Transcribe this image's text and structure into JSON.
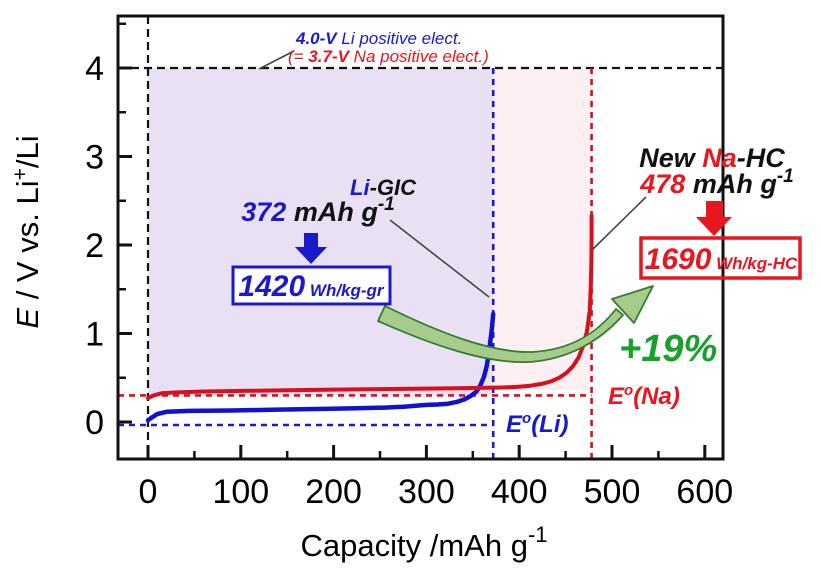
{
  "figure": {
    "top_note": {
      "line1_value": "4.0-V",
      "line1_text": " Li positive elect.",
      "line2_prefix": "(= ",
      "line2_value": "3.7-V",
      "line2_text": " Na positive elect.)"
    },
    "li": {
      "name_elem": "Li",
      "name_rest": "-GIC",
      "cap_value": "372",
      "cap_unit": " mAh g",
      "cap_sup": "-1",
      "energy_value": "1420",
      "energy_unit": " Wh/kg-gr"
    },
    "na": {
      "name_prefix": "New ",
      "name_elem": "Na",
      "name_rest": "-HC",
      "cap_value": "478",
      "cap_unit": " mAh g",
      "cap_sup": "-1",
      "energy_value": "1690",
      "energy_unit": " Wh/kg-HC"
    },
    "gain_label": "+19%",
    "eo_li": {
      "sym": "E",
      "sup": "o",
      "rest": "(Li)"
    },
    "eo_na": {
      "sym": "E",
      "sup": "o",
      "rest": "(Na)"
    }
  },
  "colors": {
    "blue": "#1a1ac8",
    "blue_curve": "#1212cc",
    "red": "#e8161e",
    "red_curve": "#d8101e",
    "green_text": "#18a02a",
    "green_arrow_fill": "#a6cc8a",
    "green_arrow_stroke": "#357a35",
    "purple_region": "#e9e1f3",
    "pink_region": "#fdeff2",
    "black": "#111111"
  },
  "chart_data": {
    "type": "line",
    "title": "",
    "xlabel_main": "Capacity /mAh g",
    "xlabel_sup": "-1",
    "ylabel_parts": {
      "p1": "E",
      "p2": " / V vs. Li",
      "sup": "+",
      "p3": "/Li"
    },
    "xlim": [
      -32,
      620
    ],
    "ylim": [
      -0.42,
      4.6
    ],
    "x_ticks": [
      0,
      100,
      200,
      300,
      400,
      500,
      600
    ],
    "x_minor_ticks": [
      50,
      150,
      250,
      350,
      450,
      550
    ],
    "y_ticks": [
      0,
      1,
      2,
      3,
      4
    ],
    "y_minor_ticks": [
      0.5,
      1.5,
      2.5,
      3.5,
      4.5
    ],
    "grid": false,
    "legend": "none",
    "reference_lines": {
      "li_positive_electrode_V": 4.0,
      "na_positive_electrode_V": 3.7,
      "black_h_at_V": 4.0,
      "black_v_at_capacity": 0,
      "blue_h_E0Li_V": 0.0,
      "blue_v_at_capacity": 372,
      "red_h_E0Na_V": 0.3,
      "red_v_at_capacity": 478
    },
    "shaded_regions": [
      {
        "label": "Li-GIC energy area",
        "x": [
          0,
          372
        ],
        "y_V": [
          0.3,
          4.0
        ],
        "color": "#e9e1f3"
      },
      {
        "label": "Na-HC extra energy area",
        "x": [
          372,
          478
        ],
        "y_V": [
          0.36,
          4.0
        ],
        "color": "#fdeff2"
      }
    ],
    "series": [
      {
        "name": "Li-GIC",
        "color": "#1212cc",
        "capacity_mAh_g": 372,
        "energy_Wh_kg": 1420,
        "points": [
          [
            0,
            0.02
          ],
          [
            4,
            0.05
          ],
          [
            10,
            0.09
          ],
          [
            20,
            0.115
          ],
          [
            45,
            0.125
          ],
          [
            90,
            0.13
          ],
          [
            140,
            0.14
          ],
          [
            190,
            0.148
          ],
          [
            225,
            0.155
          ],
          [
            255,
            0.163
          ],
          [
            275,
            0.172
          ],
          [
            290,
            0.185
          ],
          [
            300,
            0.193
          ],
          [
            312,
            0.198
          ],
          [
            322,
            0.205
          ],
          [
            332,
            0.225
          ],
          [
            341,
            0.255
          ],
          [
            348,
            0.295
          ],
          [
            354,
            0.345
          ],
          [
            358,
            0.41
          ],
          [
            362,
            0.51
          ],
          [
            365,
            0.63
          ],
          [
            367,
            0.76
          ],
          [
            369,
            0.92
          ],
          [
            370.5,
            1.05
          ],
          [
            372,
            1.22
          ]
        ]
      },
      {
        "name": "New Na-HC",
        "color": "#d8101e",
        "capacity_mAh_g": 478,
        "energy_Wh_kg": 1690,
        "points": [
          [
            0,
            0.27
          ],
          [
            6,
            0.3
          ],
          [
            15,
            0.325
          ],
          [
            30,
            0.335
          ],
          [
            60,
            0.345
          ],
          [
            110,
            0.352
          ],
          [
            160,
            0.36
          ],
          [
            210,
            0.367
          ],
          [
            260,
            0.373
          ],
          [
            310,
            0.379
          ],
          [
            350,
            0.384
          ],
          [
            380,
            0.39
          ],
          [
            398,
            0.397
          ],
          [
            412,
            0.41
          ],
          [
            424,
            0.43
          ],
          [
            434,
            0.458
          ],
          [
            443,
            0.5
          ],
          [
            451,
            0.555
          ],
          [
            458,
            0.63
          ],
          [
            464,
            0.73
          ],
          [
            469,
            0.86
          ],
          [
            473,
            1.02
          ],
          [
            476,
            1.25
          ],
          [
            477,
            1.5
          ],
          [
            477.8,
            1.8
          ],
          [
            478,
            2.05
          ],
          [
            478,
            2.33
          ]
        ]
      }
    ],
    "gain_percent_annotation": "+19%"
  }
}
